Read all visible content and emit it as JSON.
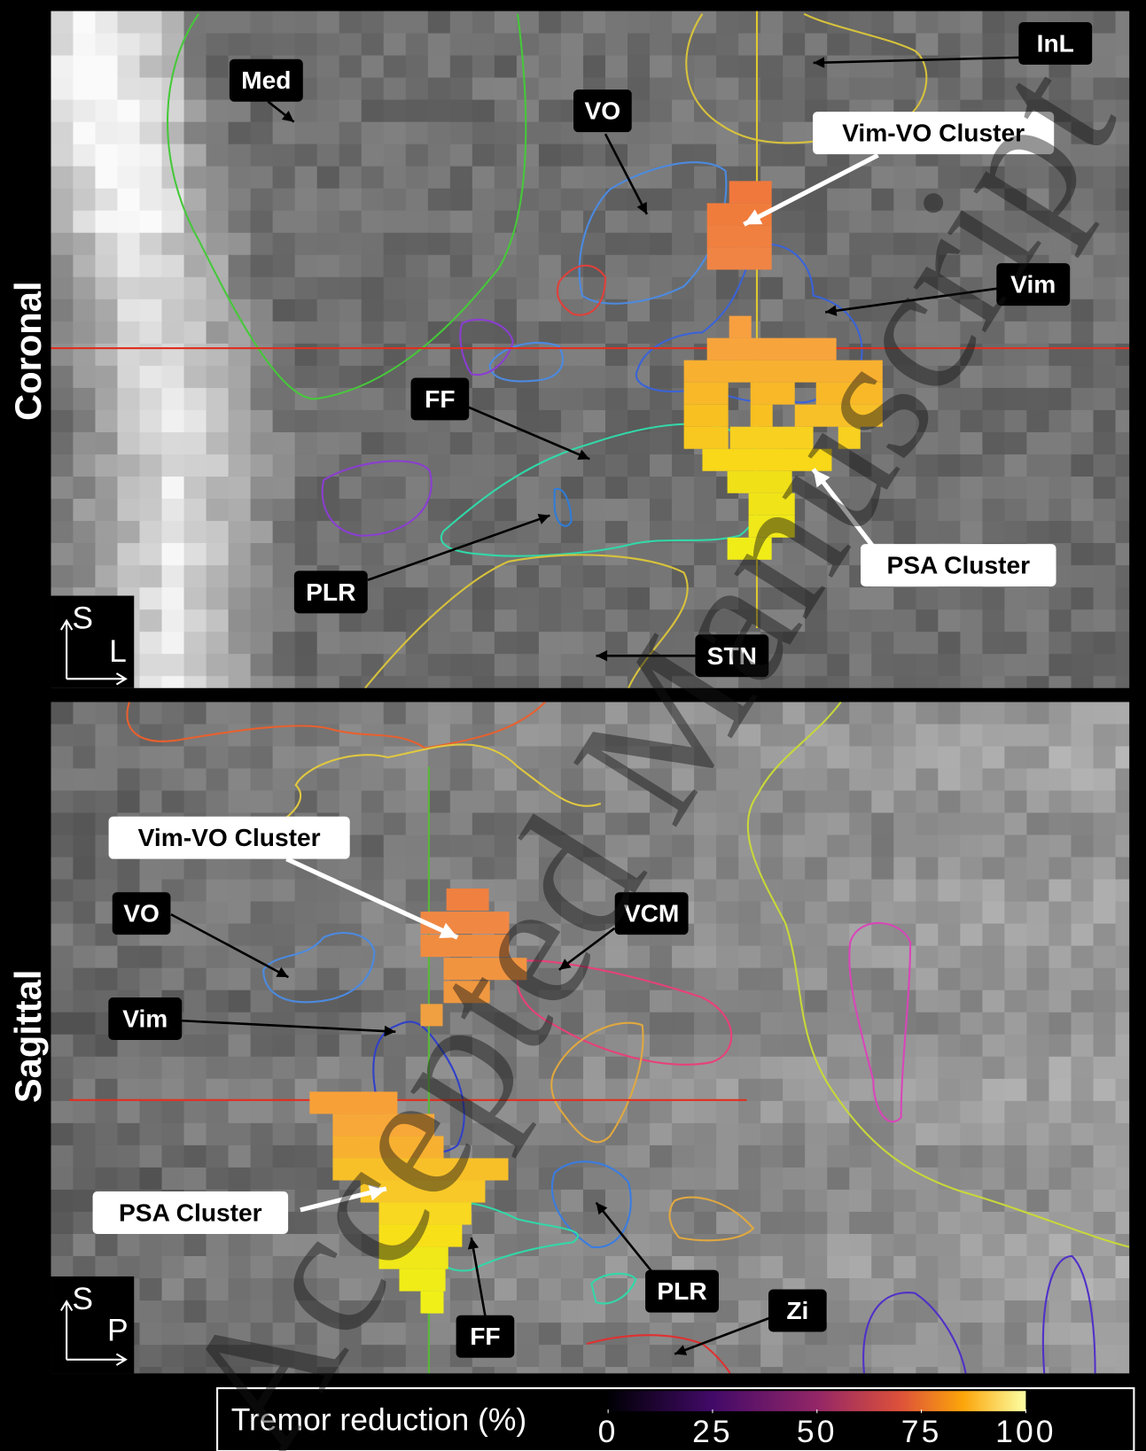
{
  "panels": [
    {
      "view": "Coronal",
      "orientation": [
        "S",
        "L"
      ],
      "labels": [
        "Med",
        "VO",
        "InL",
        "Vim-VO Cluster",
        "Vim",
        "FF",
        "PSA Cluster",
        "PLR",
        "STN"
      ]
    },
    {
      "view": "Sagittal",
      "orientation": [
        "S",
        "P"
      ],
      "labels": [
        "Vim-VO Cluster",
        "VO",
        "VCM",
        "Vim",
        "PSA Cluster",
        "FF",
        "PLR",
        "Zi"
      ]
    }
  ],
  "colorbar": {
    "label": "Tremor reduction (%)",
    "lim": [
      0,
      100
    ],
    "ticks": [
      0,
      25,
      50,
      75,
      100
    ]
  },
  "watermark": "Accepted Manuscript"
}
